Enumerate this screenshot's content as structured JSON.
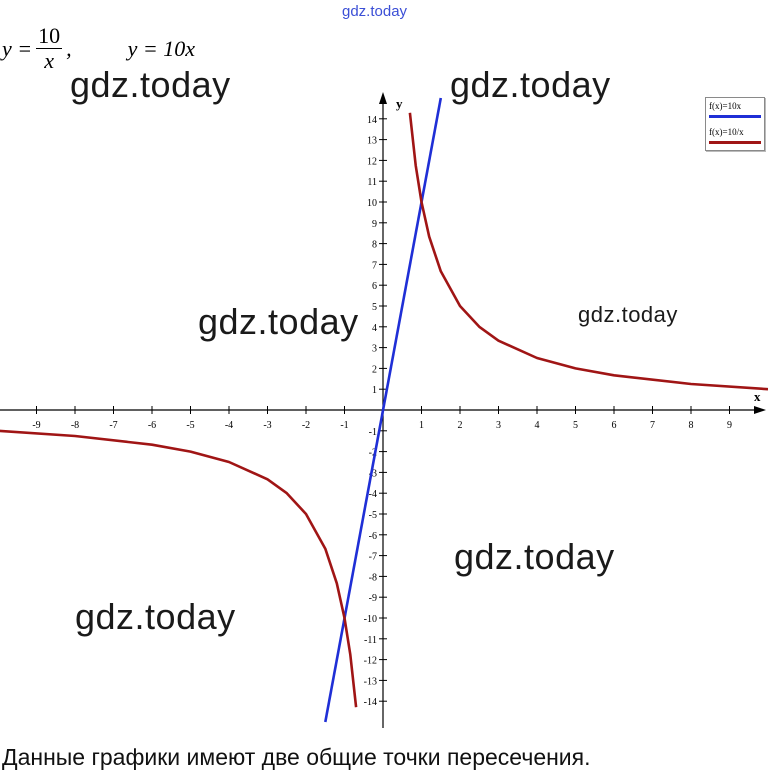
{
  "header": {
    "watermark": "gdz.today"
  },
  "formula": {
    "eq1_lhs": "y =",
    "eq1_num": "10",
    "eq1_den": "x",
    "eq1_sep": ",",
    "eq2": "y = 10x"
  },
  "watermarks": [
    "gdz.today",
    "gdz.today",
    "gdz.today",
    "gdz.today",
    "gdz.today",
    "gdz.today",
    "gdz.today"
  ],
  "legend": {
    "items": [
      {
        "label": "f(x)=10x",
        "color": "#1f2fd6"
      },
      {
        "label": "f(x)=10/x",
        "color": "#a01515"
      }
    ]
  },
  "conclusion": "Данные графики имеют две общие точки пересечения.",
  "chart_data": {
    "type": "line",
    "xlabel": "x",
    "ylabel": "y",
    "xlim": [
      -10,
      10
    ],
    "ylim": [
      -15,
      15
    ],
    "x_ticks": [
      -9,
      -8,
      -7,
      -6,
      -5,
      -4,
      -3,
      -2,
      -1,
      1,
      2,
      3,
      4,
      5,
      6,
      7,
      8,
      9
    ],
    "y_ticks": [
      -14,
      -13,
      -12,
      -11,
      -10,
      -9,
      -8,
      -7,
      -6,
      -5,
      -4,
      -3,
      -2,
      -1,
      1,
      2,
      3,
      4,
      5,
      6,
      7,
      8,
      9,
      10,
      11,
      12,
      13,
      14
    ],
    "grid": false,
    "legend_position": "top-right",
    "series": [
      {
        "name": "f(x)=10x",
        "color": "#1f2fd6",
        "x": [
          -1.5,
          1.5
        ],
        "y": [
          -15,
          15
        ]
      },
      {
        "name": "f(x)=10/x",
        "color": "#a01515",
        "branches": [
          {
            "x": [
              -10,
              -8,
              -6,
              -5,
              -4,
              -3,
              -2.5,
              -2,
              -1.5,
              -1.2,
              -1,
              -0.85,
              -0.7
            ],
            "y": [
              -1,
              -1.25,
              -1.67,
              -2,
              -2.5,
              -3.33,
              -4,
              -5,
              -6.67,
              -8.33,
              -10,
              -11.76,
              -14.29
            ]
          },
          {
            "x": [
              0.7,
              0.85,
              1,
              1.2,
              1.5,
              2,
              2.5,
              3,
              4,
              5,
              6,
              8,
              10
            ],
            "y": [
              14.29,
              11.76,
              10,
              8.33,
              6.67,
              5,
              4,
              3.33,
              2.5,
              2,
              1.67,
              1.25,
              1
            ]
          }
        ]
      }
    ]
  }
}
